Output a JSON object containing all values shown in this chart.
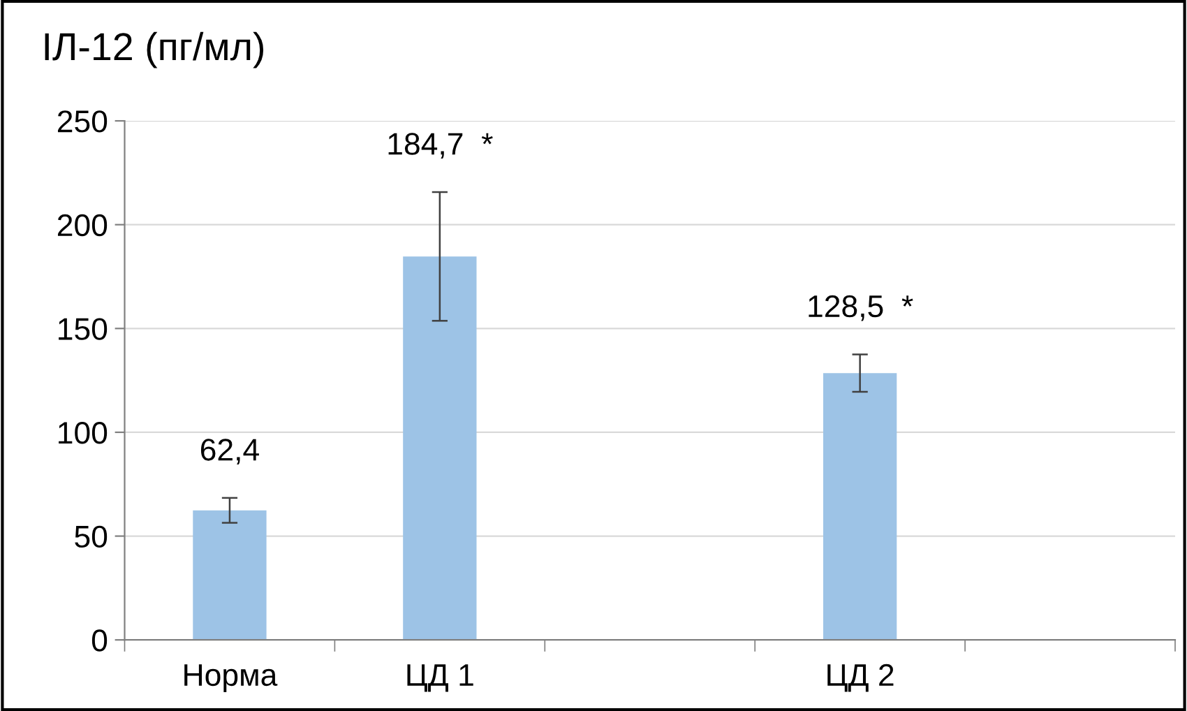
{
  "chart_data": {
    "type": "bar",
    "title": "ІЛ-12 (пг/мл)",
    "categories": [
      "Норма",
      "ЦД 1",
      null,
      "ЦД 2",
      null
    ],
    "values": [
      62.4,
      184.7,
      null,
      128.5,
      null
    ],
    "errors": [
      6,
      31,
      null,
      9,
      null
    ],
    "value_labels": [
      "62,4",
      "184,7  *",
      null,
      "128,5  *",
      null
    ],
    "color": "#9dc3e6",
    "ylim": [
      0,
      250
    ],
    "yticks": [
      0,
      50,
      100,
      150,
      200,
      250
    ],
    "grid": "y"
  }
}
